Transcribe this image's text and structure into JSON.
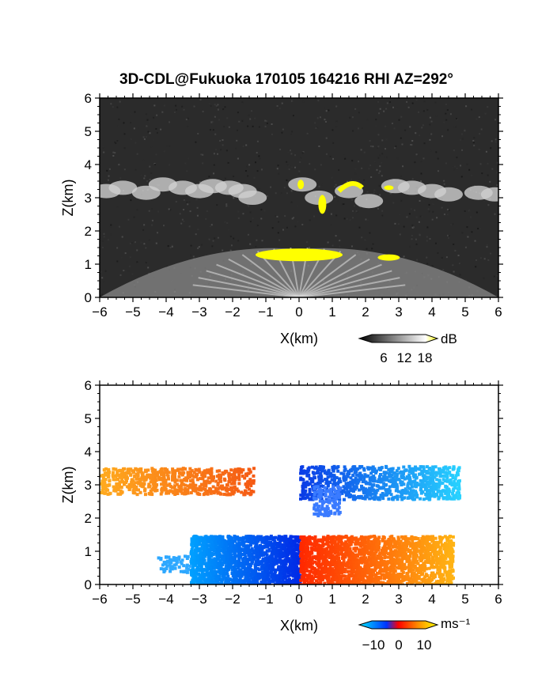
{
  "title": "3D-CDL@Fukuoka 170105 164216 RHI AZ=292°",
  "chart_data": [
    {
      "type": "heatmap",
      "quantity": "backscatter intensity",
      "xlabel": "X(km)",
      "ylabel": "Z(km)",
      "xlim": [
        -6,
        6
      ],
      "ylim": [
        0,
        6
      ],
      "xticks": [
        "-6",
        "-5",
        "-4",
        "-3",
        "-2",
        "-1",
        "0",
        "1",
        "2",
        "3",
        "4",
        "5",
        "6"
      ],
      "yticks": [
        "0",
        "1",
        "2",
        "3",
        "4",
        "5",
        "6"
      ],
      "colorbar": {
        "unit": "dB",
        "ticks": [
          "6",
          "12",
          "18"
        ],
        "range": [
          0,
          20
        ],
        "colors": [
          "#000000",
          "#ffffff",
          "#ffff00"
        ]
      },
      "background_color": "#2b2b2b",
      "features": [
        {
          "name": "cloud layer",
          "x": [
            -6,
            6
          ],
          "z": [
            2.6,
            3.6
          ],
          "value_db": 14
        },
        {
          "name": "boundary layer top",
          "x": [
            -1.2,
            3.0
          ],
          "z": [
            1.15,
            1.5
          ],
          "value_db": 18
        },
        {
          "name": "near-field fan",
          "x": [
            -6,
            6
          ],
          "z": [
            0,
            1.5
          ],
          "value_db": 10
        }
      ]
    },
    {
      "type": "heatmap",
      "quantity": "Doppler velocity",
      "xlabel": "X(km)",
      "ylabel": "Z(km)",
      "xlim": [
        -6,
        6
      ],
      "ylim": [
        0,
        6
      ],
      "xticks": [
        "-6",
        "-5",
        "-4",
        "-3",
        "-2",
        "-1",
        "0",
        "1",
        "2",
        "3",
        "4",
        "5",
        "6"
      ],
      "yticks": [
        "0",
        "1",
        "2",
        "3",
        "4",
        "5",
        "6"
      ],
      "colorbar": {
        "unit": "ms⁻¹",
        "ticks": [
          "−10",
          "0",
          "10"
        ],
        "range": [
          -15,
          15
        ],
        "colors": [
          "#00e5ff",
          "#0033ff",
          "#ff0000",
          "#ff8c00",
          "#ffff00"
        ]
      },
      "features": [
        {
          "name": "upper layer west",
          "x": [
            -6,
            -1.4
          ],
          "z": [
            2.7,
            3.6
          ],
          "velocity": 7
        },
        {
          "name": "upper layer east",
          "x": [
            0,
            4.8
          ],
          "z": [
            2.1,
            3.8
          ],
          "velocity": -10
        },
        {
          "name": "lower layer west",
          "x": [
            -4.3,
            0
          ],
          "z": [
            0,
            1.5
          ],
          "velocity": -9
        },
        {
          "name": "lower layer east",
          "x": [
            0,
            4.6
          ],
          "z": [
            0,
            1.5
          ],
          "velocity": 6
        }
      ]
    }
  ]
}
